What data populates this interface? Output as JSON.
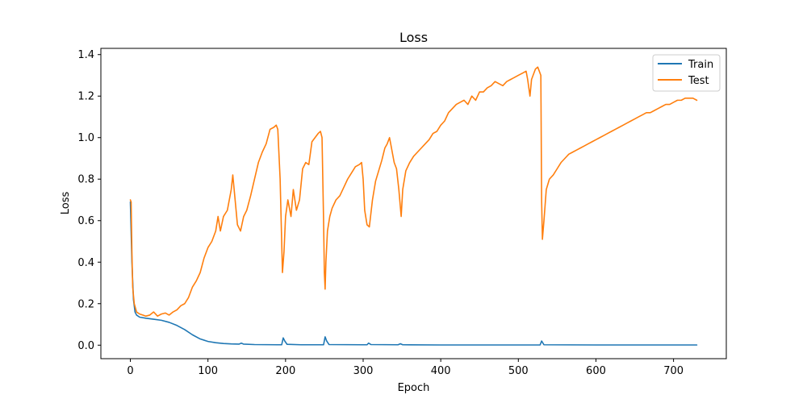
{
  "chart_data": {
    "type": "line",
    "title": "Loss",
    "xlabel": "Epoch",
    "ylabel": "Loss",
    "xlim": [
      -38,
      768
    ],
    "ylim": [
      -0.065,
      1.43
    ],
    "xticks": [
      0,
      100,
      200,
      300,
      400,
      500,
      600,
      700
    ],
    "yticks": [
      0.0,
      0.2,
      0.4,
      0.6,
      0.8,
      1.0,
      1.2,
      1.4
    ],
    "xtick_labels": [
      "0",
      "100",
      "200",
      "300",
      "400",
      "500",
      "600",
      "700"
    ],
    "ytick_labels": [
      "0.0",
      "0.2",
      "0.4",
      "0.6",
      "0.8",
      "1.0",
      "1.2",
      "1.4"
    ],
    "legend_position": "top-right",
    "series": [
      {
        "name": "Train",
        "color": "#1f77b4",
        "points": [
          [
            0,
            0.69
          ],
          [
            2,
            0.4
          ],
          [
            4,
            0.22
          ],
          [
            6,
            0.16
          ],
          [
            8,
            0.145
          ],
          [
            12,
            0.135
          ],
          [
            20,
            0.13
          ],
          [
            30,
            0.125
          ],
          [
            40,
            0.12
          ],
          [
            50,
            0.11
          ],
          [
            60,
            0.095
          ],
          [
            70,
            0.075
          ],
          [
            80,
            0.05
          ],
          [
            90,
            0.03
          ],
          [
            100,
            0.018
          ],
          [
            110,
            0.012
          ],
          [
            120,
            0.008
          ],
          [
            130,
            0.006
          ],
          [
            140,
            0.005
          ],
          [
            143,
            0.01
          ],
          [
            146,
            0.005
          ],
          [
            160,
            0.003
          ],
          [
            190,
            0.002
          ],
          [
            195,
            0.002
          ],
          [
            197,
            0.035
          ],
          [
            199,
            0.02
          ],
          [
            202,
            0.004
          ],
          [
            220,
            0.002
          ],
          [
            249,
            0.002
          ],
          [
            251,
            0.04
          ],
          [
            253,
            0.02
          ],
          [
            256,
            0.003
          ],
          [
            300,
            0.002
          ],
          [
            305,
            0.002
          ],
          [
            307,
            0.01
          ],
          [
            310,
            0.003
          ],
          [
            345,
            0.002
          ],
          [
            348,
            0.007
          ],
          [
            351,
            0.002
          ],
          [
            400,
            0.001
          ],
          [
            528,
            0.001
          ],
          [
            530,
            0.02
          ],
          [
            533,
            0.002
          ],
          [
            600,
            0.001
          ],
          [
            730,
            0.001
          ]
        ]
      },
      {
        "name": "Test",
        "color": "#ff7f0e",
        "points": [
          [
            0,
            0.7
          ],
          [
            1,
            0.69
          ],
          [
            2,
            0.45
          ],
          [
            3,
            0.28
          ],
          [
            5,
            0.2
          ],
          [
            8,
            0.16
          ],
          [
            12,
            0.15
          ],
          [
            16,
            0.145
          ],
          [
            20,
            0.14
          ],
          [
            25,
            0.145
          ],
          [
            30,
            0.16
          ],
          [
            35,
            0.14
          ],
          [
            40,
            0.15
          ],
          [
            45,
            0.155
          ],
          [
            50,
            0.145
          ],
          [
            55,
            0.16
          ],
          [
            60,
            0.17
          ],
          [
            65,
            0.19
          ],
          [
            70,
            0.2
          ],
          [
            75,
            0.23
          ],
          [
            80,
            0.28
          ],
          [
            85,
            0.31
          ],
          [
            90,
            0.35
          ],
          [
            95,
            0.42
          ],
          [
            100,
            0.47
          ],
          [
            105,
            0.5
          ],
          [
            110,
            0.55
          ],
          [
            113,
            0.62
          ],
          [
            116,
            0.55
          ],
          [
            120,
            0.62
          ],
          [
            125,
            0.65
          ],
          [
            130,
            0.75
          ],
          [
            132,
            0.82
          ],
          [
            135,
            0.7
          ],
          [
            138,
            0.58
          ],
          [
            142,
            0.55
          ],
          [
            146,
            0.62
          ],
          [
            150,
            0.65
          ],
          [
            155,
            0.72
          ],
          [
            160,
            0.8
          ],
          [
            165,
            0.88
          ],
          [
            170,
            0.93
          ],
          [
            175,
            0.97
          ],
          [
            180,
            1.04
          ],
          [
            185,
            1.05
          ],
          [
            188,
            1.06
          ],
          [
            190,
            1.04
          ],
          [
            193,
            0.8
          ],
          [
            195,
            0.5
          ],
          [
            196,
            0.35
          ],
          [
            198,
            0.45
          ],
          [
            200,
            0.62
          ],
          [
            203,
            0.7
          ],
          [
            207,
            0.62
          ],
          [
            210,
            0.75
          ],
          [
            214,
            0.65
          ],
          [
            218,
            0.7
          ],
          [
            222,
            0.85
          ],
          [
            226,
            0.88
          ],
          [
            230,
            0.87
          ],
          [
            234,
            0.98
          ],
          [
            238,
            1.0
          ],
          [
            242,
            1.02
          ],
          [
            245,
            1.03
          ],
          [
            247,
            1.0
          ],
          [
            249,
            0.6
          ],
          [
            250,
            0.35
          ],
          [
            251,
            0.27
          ],
          [
            252,
            0.4
          ],
          [
            254,
            0.55
          ],
          [
            257,
            0.62
          ],
          [
            260,
            0.66
          ],
          [
            265,
            0.7
          ],
          [
            270,
            0.72
          ],
          [
            275,
            0.76
          ],
          [
            280,
            0.8
          ],
          [
            285,
            0.83
          ],
          [
            290,
            0.86
          ],
          [
            295,
            0.87
          ],
          [
            298,
            0.88
          ],
          [
            300,
            0.8
          ],
          [
            302,
            0.65
          ],
          [
            305,
            0.58
          ],
          [
            308,
            0.57
          ],
          [
            312,
            0.7
          ],
          [
            316,
            0.79
          ],
          [
            320,
            0.84
          ],
          [
            324,
            0.89
          ],
          [
            328,
            0.95
          ],
          [
            331,
            0.97
          ],
          [
            334,
            1.0
          ],
          [
            336,
            0.96
          ],
          [
            338,
            0.92
          ],
          [
            340,
            0.88
          ],
          [
            343,
            0.85
          ],
          [
            346,
            0.75
          ],
          [
            349,
            0.62
          ],
          [
            351,
            0.75
          ],
          [
            355,
            0.84
          ],
          [
            360,
            0.88
          ],
          [
            365,
            0.91
          ],
          [
            370,
            0.93
          ],
          [
            375,
            0.95
          ],
          [
            380,
            0.97
          ],
          [
            385,
            0.99
          ],
          [
            390,
            1.02
          ],
          [
            395,
            1.03
          ],
          [
            400,
            1.06
          ],
          [
            405,
            1.08
          ],
          [
            410,
            1.12
          ],
          [
            415,
            1.14
          ],
          [
            420,
            1.16
          ],
          [
            425,
            1.17
          ],
          [
            430,
            1.18
          ],
          [
            435,
            1.16
          ],
          [
            440,
            1.2
          ],
          [
            445,
            1.18
          ],
          [
            450,
            1.22
          ],
          [
            455,
            1.22
          ],
          [
            460,
            1.24
          ],
          [
            465,
            1.25
          ],
          [
            470,
            1.27
          ],
          [
            475,
            1.26
          ],
          [
            480,
            1.25
          ],
          [
            485,
            1.27
          ],
          [
            490,
            1.28
          ],
          [
            495,
            1.29
          ],
          [
            500,
            1.3
          ],
          [
            505,
            1.31
          ],
          [
            510,
            1.32
          ],
          [
            512,
            1.28
          ],
          [
            515,
            1.2
          ],
          [
            517,
            1.28
          ],
          [
            520,
            1.31
          ],
          [
            522,
            1.33
          ],
          [
            525,
            1.34
          ],
          [
            527,
            1.32
          ],
          [
            529,
            1.3
          ],
          [
            530,
            0.7
          ],
          [
            531,
            0.51
          ],
          [
            533,
            0.6
          ],
          [
            536,
            0.75
          ],
          [
            540,
            0.8
          ],
          [
            545,
            0.82
          ],
          [
            550,
            0.85
          ],
          [
            555,
            0.88
          ],
          [
            560,
            0.9
          ],
          [
            565,
            0.92
          ],
          [
            570,
            0.93
          ],
          [
            575,
            0.94
          ],
          [
            580,
            0.95
          ],
          [
            585,
            0.96
          ],
          [
            590,
            0.97
          ],
          [
            595,
            0.98
          ],
          [
            600,
            0.99
          ],
          [
            605,
            1.0
          ],
          [
            610,
            1.01
          ],
          [
            615,
            1.02
          ],
          [
            620,
            1.03
          ],
          [
            625,
            1.04
          ],
          [
            630,
            1.05
          ],
          [
            635,
            1.06
          ],
          [
            640,
            1.07
          ],
          [
            645,
            1.08
          ],
          [
            650,
            1.09
          ],
          [
            655,
            1.1
          ],
          [
            660,
            1.11
          ],
          [
            665,
            1.12
          ],
          [
            670,
            1.12
          ],
          [
            675,
            1.13
          ],
          [
            680,
            1.14
          ],
          [
            685,
            1.15
          ],
          [
            690,
            1.16
          ],
          [
            695,
            1.16
          ],
          [
            700,
            1.17
          ],
          [
            705,
            1.18
          ],
          [
            710,
            1.18
          ],
          [
            715,
            1.19
          ],
          [
            720,
            1.19
          ],
          [
            725,
            1.19
          ],
          [
            730,
            1.18
          ]
        ]
      }
    ]
  }
}
